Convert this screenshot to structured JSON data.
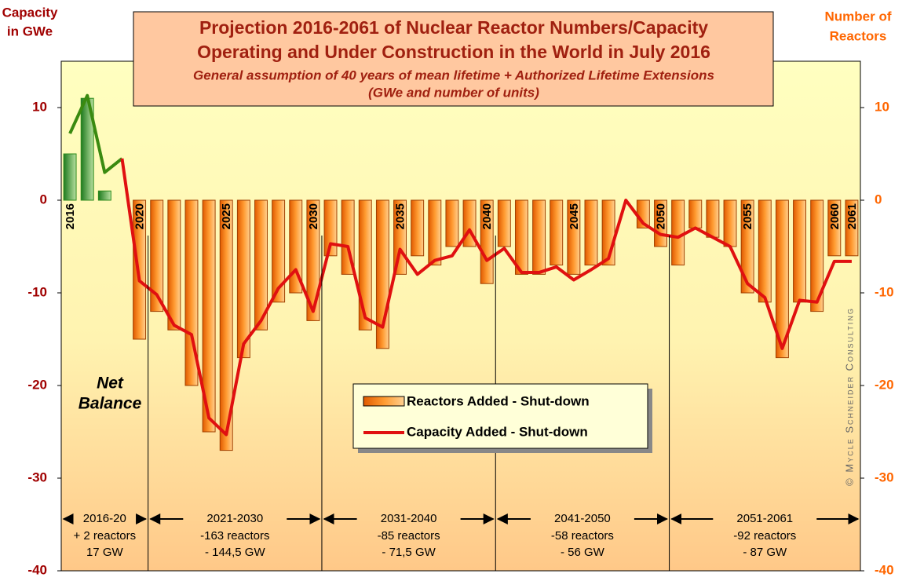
{
  "chart_data": {
    "type": "bar_line",
    "title": "Projection 2016-2061 of Nuclear Reactor Numbers/Capacity",
    "title_line2": "Operating and Under Construction in the World in July 2016",
    "subtitle": "General assumption of 40 years of mean lifetime  + Authorized Lifetime Extensions",
    "subtitle_line2": "(GWe and number of units)",
    "y_label": [
      "Capacity",
      "in GWe"
    ],
    "y2_label": [
      "Number of",
      "Reactors"
    ],
    "annotation": [
      "Net",
      "Balance"
    ],
    "watermark": "© Mycle Schneider Consulting",
    "categories": [
      "2016",
      null,
      null,
      null,
      "2020",
      null,
      null,
      null,
      null,
      "2025",
      null,
      null,
      null,
      null,
      "2030",
      null,
      null,
      null,
      null,
      "2035",
      null,
      null,
      null,
      null,
      "2040",
      null,
      null,
      null,
      null,
      "2045",
      null,
      null,
      null,
      null,
      "2050",
      null,
      null,
      null,
      null,
      "2055",
      null,
      null,
      null,
      null,
      "2060",
      "2061"
    ],
    "series": [
      {
        "name": "Reactors Added - Shut-down",
        "type": "bar",
        "axis": "y2",
        "color": "#ff8a1e",
        "positive_color": "#2e8b1e",
        "values": [
          5,
          11,
          1,
          0,
          -15,
          -12,
          -14,
          -20,
          -25,
          -27,
          -17,
          -14,
          -11,
          -10,
          -13,
          -6,
          -8,
          -14,
          -16,
          -8,
          -6,
          -7,
          -5,
          -5,
          -9,
          -5,
          -8,
          -8,
          -7,
          -8,
          -7,
          -7,
          0,
          -3,
          -5,
          -7,
          -3,
          -4,
          -5,
          -10,
          -11,
          -17,
          -11,
          -12,
          -6,
          -6
        ]
      },
      {
        "name": "Capacity Added - Shut-down",
        "type": "line",
        "color": "#e01010",
        "positive_color": "#3a8a10",
        "values": [
          7.2,
          11.3,
          3,
          4.5,
          -8.7,
          -10.2,
          -13.5,
          -14.5,
          -23.5,
          -25.3,
          -15.5,
          -13,
          -9.5,
          -7.5,
          -12,
          -4.7,
          -5,
          -12.7,
          -13.7,
          -5.3,
          -8,
          -6.5,
          -6,
          -3.2,
          -6.5,
          -5.2,
          -7.8,
          -7.8,
          -7.2,
          -8.6,
          -7.5,
          -6.3,
          0,
          -2.5,
          -3.7,
          -4,
          -3,
          -4,
          -5,
          -9,
          -10.5,
          -16,
          -10.8,
          -11,
          -6.6,
          -6.6
        ]
      }
    ],
    "ylim": [
      -40,
      15
    ],
    "yticks": [
      -40,
      -30,
      -20,
      -10,
      0,
      10
    ],
    "y2lim": [
      -40,
      15
    ],
    "y2ticks": [
      -40,
      -30,
      -20,
      -10,
      0,
      10
    ],
    "periods": [
      {
        "label": "2016-20",
        "reactors": "+ 2 reactors",
        "capacity": "17 GW"
      },
      {
        "label": "2021-2030",
        "reactors": "-163 reactors",
        "capacity": "- 144,5 GW"
      },
      {
        "label": "2031-2040",
        "reactors": "-85 reactors",
        "capacity": "- 71,5 GW"
      },
      {
        "label": "2041-2050",
        "reactors": "-58 reactors",
        "capacity": "- 56 GW"
      },
      {
        "label": "2051-2061",
        "reactors": "-92 reactors",
        "capacity": "- 87 GW"
      }
    ]
  }
}
